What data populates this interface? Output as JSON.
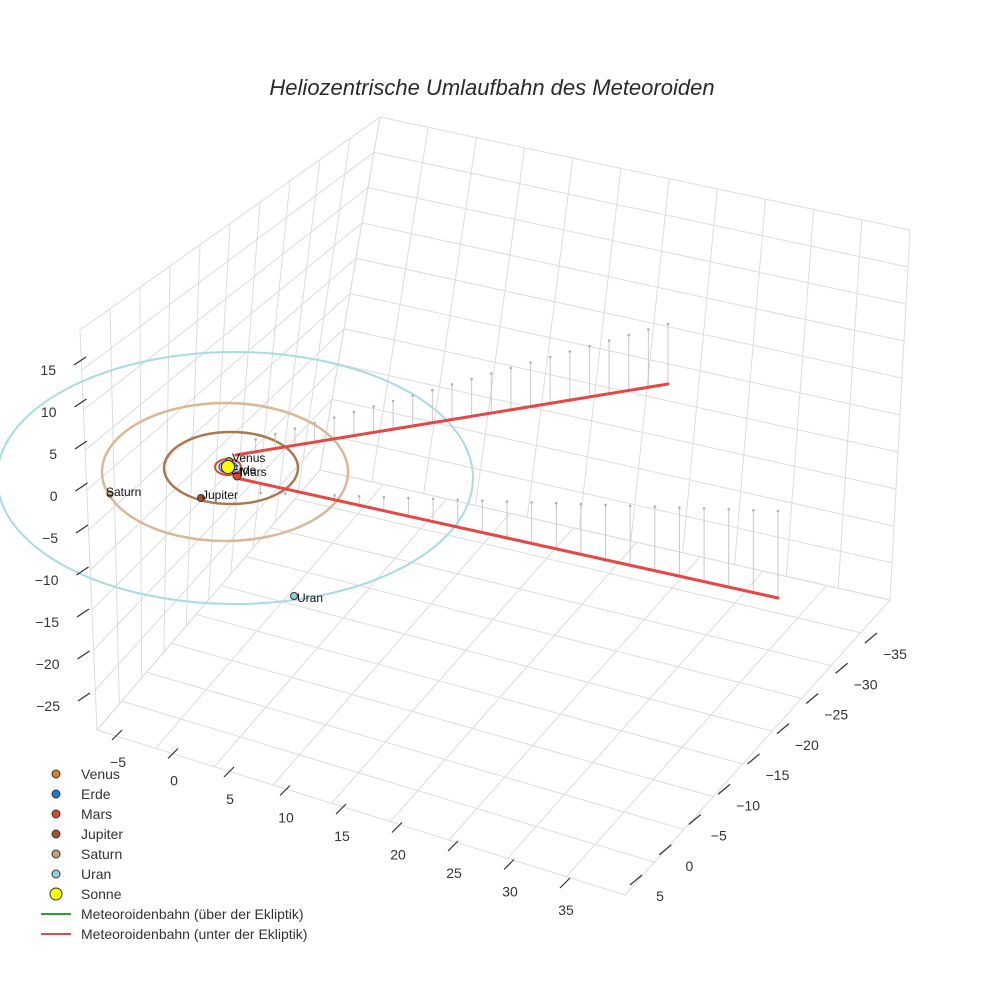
{
  "chart_data": {
    "type": "scatter3d",
    "title": "Heliozentrische Umlaufbahn des Meteoroiden",
    "axes": {
      "x": {
        "ticks": [
          -5,
          0,
          5,
          10,
          15,
          20,
          25,
          30,
          35
        ]
      },
      "y": {
        "ticks": [
          -35,
          -30,
          -25,
          -20,
          -15,
          -10,
          -5,
          0,
          5
        ]
      },
      "z": {
        "ticks": [
          -25,
          -20,
          -15,
          -10,
          -5,
          0,
          5,
          10,
          15
        ]
      }
    },
    "grid": true,
    "legend_position": "bottom-left",
    "bodies": [
      {
        "name": "Venus",
        "color": "#d4842a"
      },
      {
        "name": "Erde",
        "color": "#1f78c8"
      },
      {
        "name": "Mars",
        "color": "#d9482a"
      },
      {
        "name": "Jupiter",
        "color": "#a0522d"
      },
      {
        "name": "Saturn",
        "color": "#c8a07a"
      },
      {
        "name": "Uran",
        "color": "#8fd0e0"
      },
      {
        "name": "Sonne",
        "color": "#ffff00"
      }
    ],
    "orbits": [
      {
        "name": "Mars",
        "color": "#d9482a"
      },
      {
        "name": "Jupiter",
        "color": "#a87850"
      },
      {
        "name": "Saturn",
        "color": "#d8b896"
      },
      {
        "name": "Uran",
        "color": "#a8dbe6"
      }
    ],
    "series": [
      {
        "name": "Meteoroidenbahn (über der Ekliptik)",
        "color": "#2ca02c"
      },
      {
        "name": "Meteoroidenbahn (unter der Ekliptik)",
        "color": "#e84545"
      }
    ]
  }
}
